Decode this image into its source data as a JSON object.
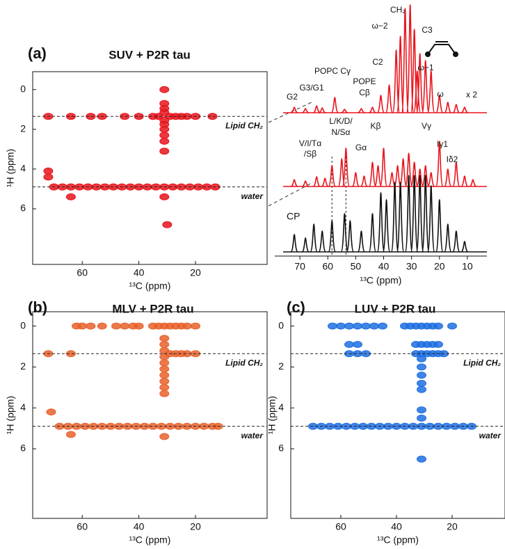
{
  "chart_data": [
    {
      "type": "contour",
      "panel_label": "(a)",
      "title": "SUV + P2R tau",
      "xlabel": "¹³C (ppm)",
      "ylabel": "¹H (ppm)",
      "xlim": [
        77.5,
        -5.3
      ],
      "ylim": [
        8.8,
        -0.9
      ],
      "xticks": [
        60,
        40,
        20
      ],
      "yticks": [
        0,
        2,
        4,
        6
      ],
      "color": "#e8141c",
      "hlines": [
        {
          "value": 1.35,
          "label": "Lipid CH₂"
        },
        {
          "value": 4.9,
          "label": "water"
        }
      ],
      "x": [
        31,
        31,
        31,
        31,
        31,
        31,
        31,
        31,
        31,
        31,
        72,
        64,
        57,
        53,
        45,
        40,
        35,
        33,
        29,
        27,
        25,
        23,
        20,
        14,
        70,
        67,
        64,
        61,
        58,
        55,
        52,
        49,
        46,
        43,
        40,
        37,
        34,
        31,
        28,
        25,
        22,
        19,
        16,
        13,
        72,
        72,
        64,
        31,
        30
      ],
      "y": [
        0.0,
        0.7,
        0.95,
        1.15,
        1.55,
        1.75,
        2.0,
        2.3,
        2.6,
        3.1,
        1.35,
        1.35,
        1.35,
        1.35,
        1.35,
        1.35,
        1.35,
        1.35,
        1.35,
        1.35,
        1.35,
        1.35,
        1.35,
        1.35,
        4.9,
        4.9,
        4.9,
        4.9,
        4.9,
        4.9,
        4.9,
        4.9,
        4.9,
        4.9,
        4.9,
        4.9,
        4.9,
        4.9,
        4.9,
        4.9,
        4.9,
        4.9,
        4.9,
        4.9,
        4.1,
        4.4,
        5.4,
        5.4,
        6.8
      ]
    },
    {
      "type": "spectrum",
      "xlabel": "¹³C (ppm)",
      "xlim": [
        79,
        3
      ],
      "xticks": [
        70,
        60,
        50,
        40,
        30,
        20,
        10
      ],
      "vlines": [
        58.5,
        53.5
      ],
      "series": [
        {
          "color": "#e8141c",
          "x": [
            72,
            68,
            64,
            62,
            57.5,
            54,
            48,
            44,
            41,
            38,
            35.5,
            34,
            32.3,
            30.5,
            29,
            28,
            27,
            25,
            23,
            20,
            17,
            14,
            11
          ],
          "values": [
            8,
            6,
            10,
            7,
            22,
            5,
            6,
            8,
            25,
            40,
            90,
            110,
            150,
            155,
            120,
            60,
            85,
            75,
            60,
            25,
            15,
            12,
            8
          ]
        },
        {
          "color": "#e8141c",
          "x": [
            72,
            68,
            64,
            61,
            58.5,
            55,
            53.5,
            50,
            47,
            44,
            42,
            40,
            37,
            35,
            33,
            31,
            29,
            27,
            25,
            23,
            20,
            17,
            14,
            11,
            8
          ],
          "values": [
            10,
            8,
            14,
            12,
            30,
            40,
            55,
            20,
            15,
            35,
            30,
            55,
            20,
            30,
            40,
            48,
            35,
            25,
            30,
            20,
            65,
            25,
            35,
            15,
            10
          ]
        },
        {
          "name": "CP",
          "color": "#111111",
          "x": [
            72,
            68,
            65,
            62,
            58.5,
            54,
            52,
            48,
            44,
            41,
            39,
            36,
            34,
            31,
            29,
            27,
            25,
            23,
            20,
            17,
            14,
            11
          ],
          "values": [
            25,
            20,
            40,
            30,
            45,
            55,
            45,
            30,
            55,
            85,
            75,
            100,
            100,
            110,
            110,
            110,
            110,
            95,
            75,
            40,
            30,
            15
          ]
        }
      ],
      "annotations": [
        "CH₂",
        "ω−2",
        "C3",
        "C2",
        "ω−1",
        "POPC Cγ",
        "POPE",
        "Cβ",
        "G2",
        "G3/G1",
        "ω",
        "x 2",
        "L/K/D/",
        "N/Sα",
        "V/I/Tα",
        "/Sβ",
        "Gα",
        "Kβ",
        "Vγ",
        "Iγ1",
        "Iδ2"
      ]
    },
    {
      "type": "contour",
      "panel_label": "(b)",
      "title": "MLV + P2R tau",
      "xlabel": "¹³C (ppm)",
      "ylabel": "¹H (ppm)",
      "xlim": [
        77.5,
        -5.3
      ],
      "ylim": [
        9.4,
        -0.7
      ],
      "xticks": [
        60,
        40,
        20
      ],
      "yticks": [
        0,
        2,
        4,
        6
      ],
      "color": "#e8622c",
      "hlines": [
        {
          "value": 1.35,
          "label": "Lipid CH₂"
        },
        {
          "value": 4.9,
          "label": "water"
        }
      ],
      "x": [
        62,
        60,
        57,
        53,
        48,
        45,
        42,
        40,
        35,
        33,
        31,
        29,
        27,
        25,
        23,
        20,
        31,
        31,
        31,
        31,
        31,
        31,
        31,
        31,
        31,
        31,
        72,
        64,
        29,
        27,
        25,
        23,
        20,
        68,
        65,
        62,
        59,
        56,
        53,
        50,
        47,
        44,
        41,
        38,
        35,
        32,
        29,
        26,
        23,
        20,
        17,
        14,
        12,
        71,
        64,
        31
      ],
      "y": [
        0,
        0,
        0,
        0,
        0,
        0,
        0,
        0,
        0,
        0,
        0,
        0,
        0,
        0,
        0,
        0,
        0.6,
        0.9,
        1.2,
        1.5,
        1.8,
        2.1,
        2.4,
        2.7,
        3.0,
        3.3,
        1.35,
        1.35,
        1.35,
        1.35,
        1.35,
        1.35,
        1.35,
        4.9,
        4.9,
        4.9,
        4.9,
        4.9,
        4.9,
        4.9,
        4.9,
        4.9,
        4.9,
        4.9,
        4.9,
        4.9,
        4.9,
        4.9,
        4.9,
        4.9,
        4.9,
        4.9,
        4.9,
        4.2,
        5.3,
        5.4
      ]
    },
    {
      "type": "contour",
      "panel_label": "(c)",
      "title": "LUV + P2R tau",
      "xlabel": "¹³C (ppm)",
      "ylabel": "¹H (ppm)",
      "xlim": [
        78,
        1
      ],
      "ylim": [
        9.4,
        -0.7
      ],
      "xticks": [
        60,
        40,
        20
      ],
      "yticks": [
        0,
        2,
        4,
        6
      ],
      "color": "#1f6fe0",
      "hlines": [
        {
          "value": 1.35,
          "label": "Lipid CH₂"
        },
        {
          "value": 4.9,
          "label": "water"
        }
      ],
      "x": [
        63,
        60,
        57,
        54,
        51,
        48,
        45,
        37,
        35,
        33,
        31,
        29,
        27,
        25,
        20,
        57,
        54,
        51,
        33,
        31,
        29,
        27,
        25,
        23,
        57,
        54,
        33,
        31,
        29,
        27,
        25,
        31,
        31,
        31,
        31,
        31,
        31,
        31,
        31,
        70,
        67,
        64,
        61,
        58,
        55,
        52,
        49,
        46,
        43,
        40,
        37,
        34,
        31,
        28,
        25,
        22,
        19,
        16,
        13
      ],
      "y": [
        0,
        0,
        0,
        0,
        0,
        0,
        0,
        0,
        0,
        0,
        0,
        0,
        0,
        0,
        0,
        1.35,
        1.35,
        1.35,
        1.35,
        1.35,
        1.35,
        1.35,
        1.35,
        1.35,
        0.9,
        0.9,
        0.9,
        0.9,
        0.9,
        0.9,
        0.9,
        1.6,
        2.0,
        2.4,
        2.8,
        3.1,
        4.1,
        4.5,
        6.5,
        4.9,
        4.9,
        4.9,
        4.9,
        4.9,
        4.9,
        4.9,
        4.9,
        4.9,
        4.9,
        4.9,
        4.9,
        4.9,
        4.9,
        4.9,
        4.9,
        4.9,
        4.9,
        4.9,
        4.9
      ]
    }
  ]
}
